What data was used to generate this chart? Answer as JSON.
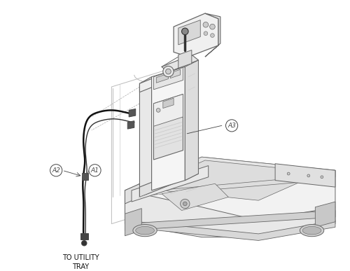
{
  "background_color": "#ffffff",
  "line_color": "#666666",
  "dark_line": "#333333",
  "light_gray": "#e8e8e8",
  "mid_gray": "#cccccc",
  "dark_gray": "#444444",
  "wire_color": "#111111",
  "label_A1": "A1",
  "label_A2": "A2",
  "label_A3": "A3",
  "label_utility": "TO UTILITY\nTRAY",
  "fig_width": 5.0,
  "fig_height": 3.87
}
